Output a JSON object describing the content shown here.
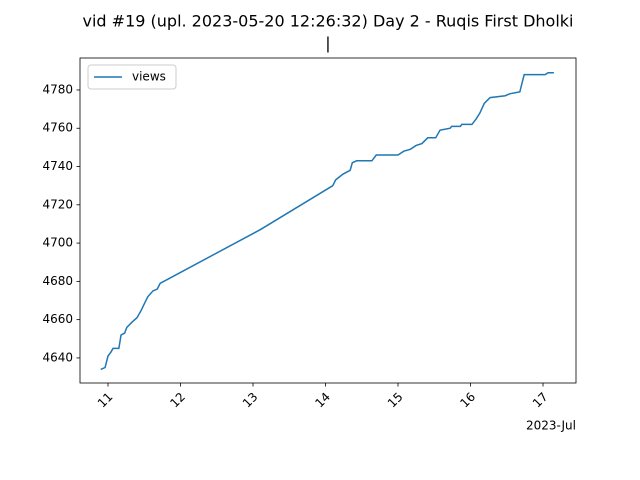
{
  "chart_data": {
    "type": "line",
    "title": [
      "vid #19 (upl. 2023-05-20 12:26:32) Day 2 - Ruqis First Dholki",
      "|"
    ],
    "x_offset_label": "2023-Jul",
    "x": [
      10.9,
      10.96,
      11.0,
      11.04,
      11.07,
      11.15,
      11.18,
      11.23,
      11.26,
      11.34,
      11.4,
      11.46,
      11.51,
      11.55,
      11.62,
      11.68,
      11.72,
      13.1,
      14.1,
      14.14,
      14.24,
      14.34,
      14.37,
      14.43,
      14.64,
      14.7,
      15.0,
      15.08,
      15.17,
      15.25,
      15.33,
      15.41,
      15.52,
      15.58,
      15.72,
      15.74,
      15.86,
      15.88,
      16.02,
      16.08,
      16.13,
      16.19,
      16.27,
      16.48,
      16.54,
      16.68,
      16.74,
      17.03,
      17.07,
      17.15
    ],
    "series": [
      {
        "name": "views",
        "color": "#1f77b4",
        "values": [
          4634,
          4635,
          4641,
          4643,
          4645,
          4645,
          4652,
          4653,
          4656,
          4659,
          4661,
          4665,
          4669,
          4672,
          4675,
          4676,
          4679,
          4707,
          4730,
          4733,
          4736,
          4738,
          4742,
          4743,
          4743,
          4746,
          4746,
          4748,
          4749,
          4751,
          4752,
          4755,
          4755,
          4759,
          4760,
          4761,
          4761,
          4762,
          4762,
          4765,
          4768,
          4773,
          4776,
          4777,
          4778,
          4779,
          4788,
          4788,
          4789,
          4789
        ]
      }
    ],
    "xlim": [
      10.614,
      17.455
    ],
    "xticks": [
      11,
      12,
      13,
      14,
      15,
      16,
      17
    ],
    "ylim": [
      4626.9,
      4796.7
    ],
    "yticks": [
      4640,
      4660,
      4680,
      4700,
      4720,
      4740,
      4760,
      4780
    ],
    "legend": "upper left"
  }
}
